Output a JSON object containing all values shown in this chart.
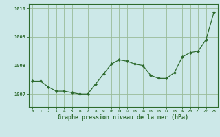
{
  "x": [
    0,
    1,
    2,
    3,
    4,
    5,
    6,
    7,
    8,
    9,
    10,
    11,
    12,
    13,
    14,
    15,
    16,
    17,
    18,
    19,
    20,
    21,
    22,
    23
  ],
  "y": [
    1007.45,
    1007.45,
    1007.25,
    1007.1,
    1007.1,
    1007.05,
    1007.0,
    1007.0,
    1007.35,
    1007.7,
    1008.05,
    1008.2,
    1008.15,
    1008.05,
    1008.0,
    1007.65,
    1007.55,
    1007.55,
    1007.75,
    1008.3,
    1008.45,
    1008.5,
    1008.9,
    1009.85
  ],
  "line_color": "#2d6a2d",
  "marker_color": "#2d6a2d",
  "bg_color": "#cce8e8",
  "grid_color": "#99bb99",
  "border_color": "#2d6a2d",
  "xlabel": "Graphe pression niveau de la mer (hPa)",
  "xlabel_color": "#2d6a2d",
  "ytick_labels": [
    "1007",
    "1008",
    "1009",
    "1010"
  ],
  "ytick_values": [
    1007,
    1008,
    1009,
    1010
  ],
  "ylim": [
    1006.55,
    1010.15
  ],
  "xlim": [
    -0.5,
    23.5
  ]
}
